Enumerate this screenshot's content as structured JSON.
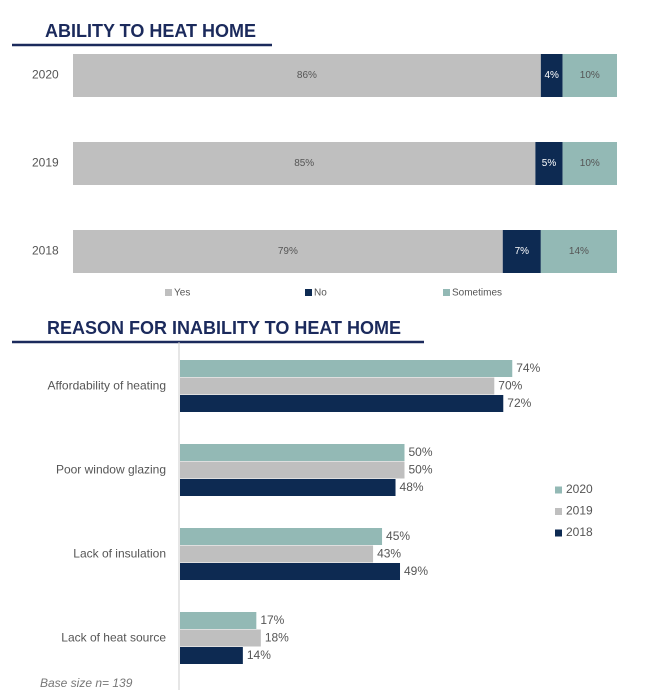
{
  "chart_data": [
    {
      "type": "stacked_bar",
      "title": "ABILITY TO HEAT HOME",
      "categories": [
        "2020",
        "2019",
        "2018"
      ],
      "series": [
        {
          "name": "Yes",
          "color": "#bfbfbf",
          "values": [
            86,
            85,
            79
          ],
          "value_labels": [
            "86%",
            "85%",
            "79%"
          ]
        },
        {
          "name": "No",
          "color": "#0d2a52",
          "values": [
            4,
            5,
            7
          ],
          "value_labels": [
            "4%",
            "5%",
            "7%"
          ]
        },
        {
          "name": "Sometimes",
          "color": "#93b9b5",
          "values": [
            10,
            10,
            14
          ],
          "value_labels": [
            "10%",
            "10%",
            "14%"
          ]
        }
      ]
    },
    {
      "type": "grouped_bar",
      "title": "REASON FOR INABILITY TO HEAT HOME",
      "categories": [
        "Affordability of heating",
        "Poor window glazing",
        "Lack of insulation",
        "Lack of heat source"
      ],
      "series": [
        {
          "name": "2020",
          "color": "#93b9b5",
          "values": [
            74,
            50,
            45,
            17
          ],
          "value_labels": [
            "74%",
            "50%",
            "45%",
            "17%"
          ]
        },
        {
          "name": "2019",
          "color": "#bfbfbf",
          "values": [
            70,
            50,
            43,
            18
          ],
          "value_labels": [
            "70%",
            "50%",
            "43%",
            "18%"
          ]
        },
        {
          "name": "2018",
          "color": "#0d2a52",
          "values": [
            72,
            48,
            49,
            14
          ],
          "value_labels": [
            "72%",
            "48%",
            "49%",
            "14%"
          ]
        }
      ],
      "xlim": [
        0,
        100
      ],
      "note": "Base size n= 139"
    }
  ]
}
